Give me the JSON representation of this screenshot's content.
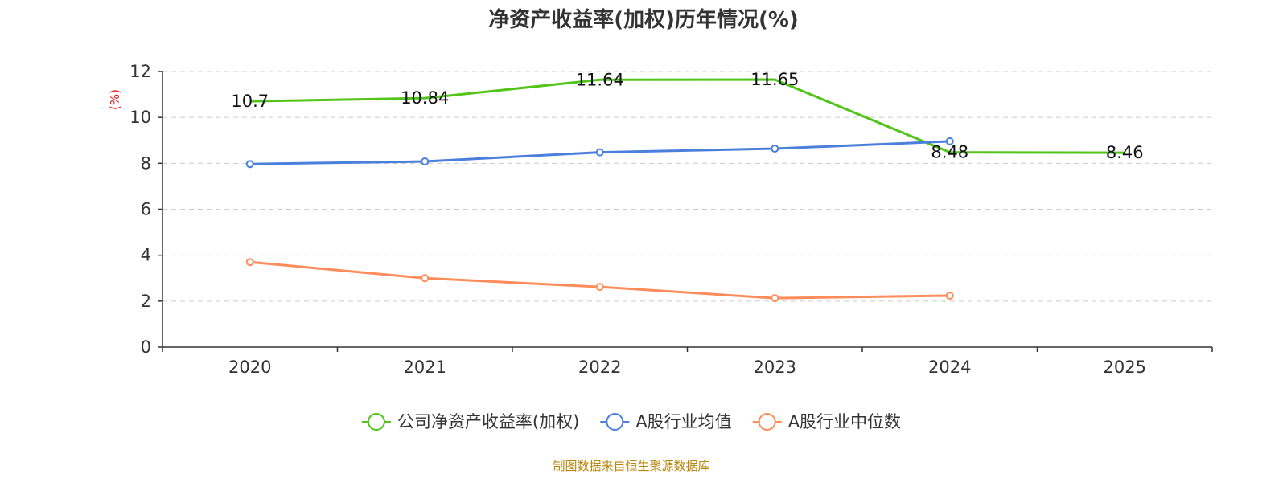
{
  "chart_data": {
    "type": "line",
    "title": "净资产收益率(加权)历年情况(%)",
    "ylabel": "(%)",
    "xlabel": "",
    "categories": [
      "2020",
      "2021",
      "2022",
      "2023",
      "2024",
      "2025"
    ],
    "ylim": [
      0,
      12
    ],
    "yticks": [
      0,
      2,
      4,
      6,
      8,
      10,
      12
    ],
    "grid": true,
    "legend_position": "bottom",
    "series": [
      {
        "name": "公司净资产收益率(加权)",
        "color": "#52c41a",
        "values": [
          10.7,
          10.84,
          11.64,
          11.65,
          8.48,
          8.46
        ],
        "labels": [
          "10.7",
          "10.84",
          "11.64",
          "11.65",
          "8.48",
          "8.46"
        ],
        "show_labels": true,
        "show_markers": false
      },
      {
        "name": "A股行业均值",
        "color": "#4a7fdc",
        "values": [
          7.97,
          8.08,
          8.48,
          8.64,
          8.96,
          null
        ],
        "show_labels": false,
        "show_markers": true
      },
      {
        "name": "A股行业中位数",
        "color": "#ff8c5a",
        "values": [
          3.7,
          3.0,
          2.62,
          2.13,
          2.24,
          null
        ],
        "show_labels": false,
        "show_markers": true
      }
    ],
    "source": "制图数据来自恒生聚源数据库",
    "ylabel_color": "#ee1111",
    "source_color": "#b8860b"
  }
}
